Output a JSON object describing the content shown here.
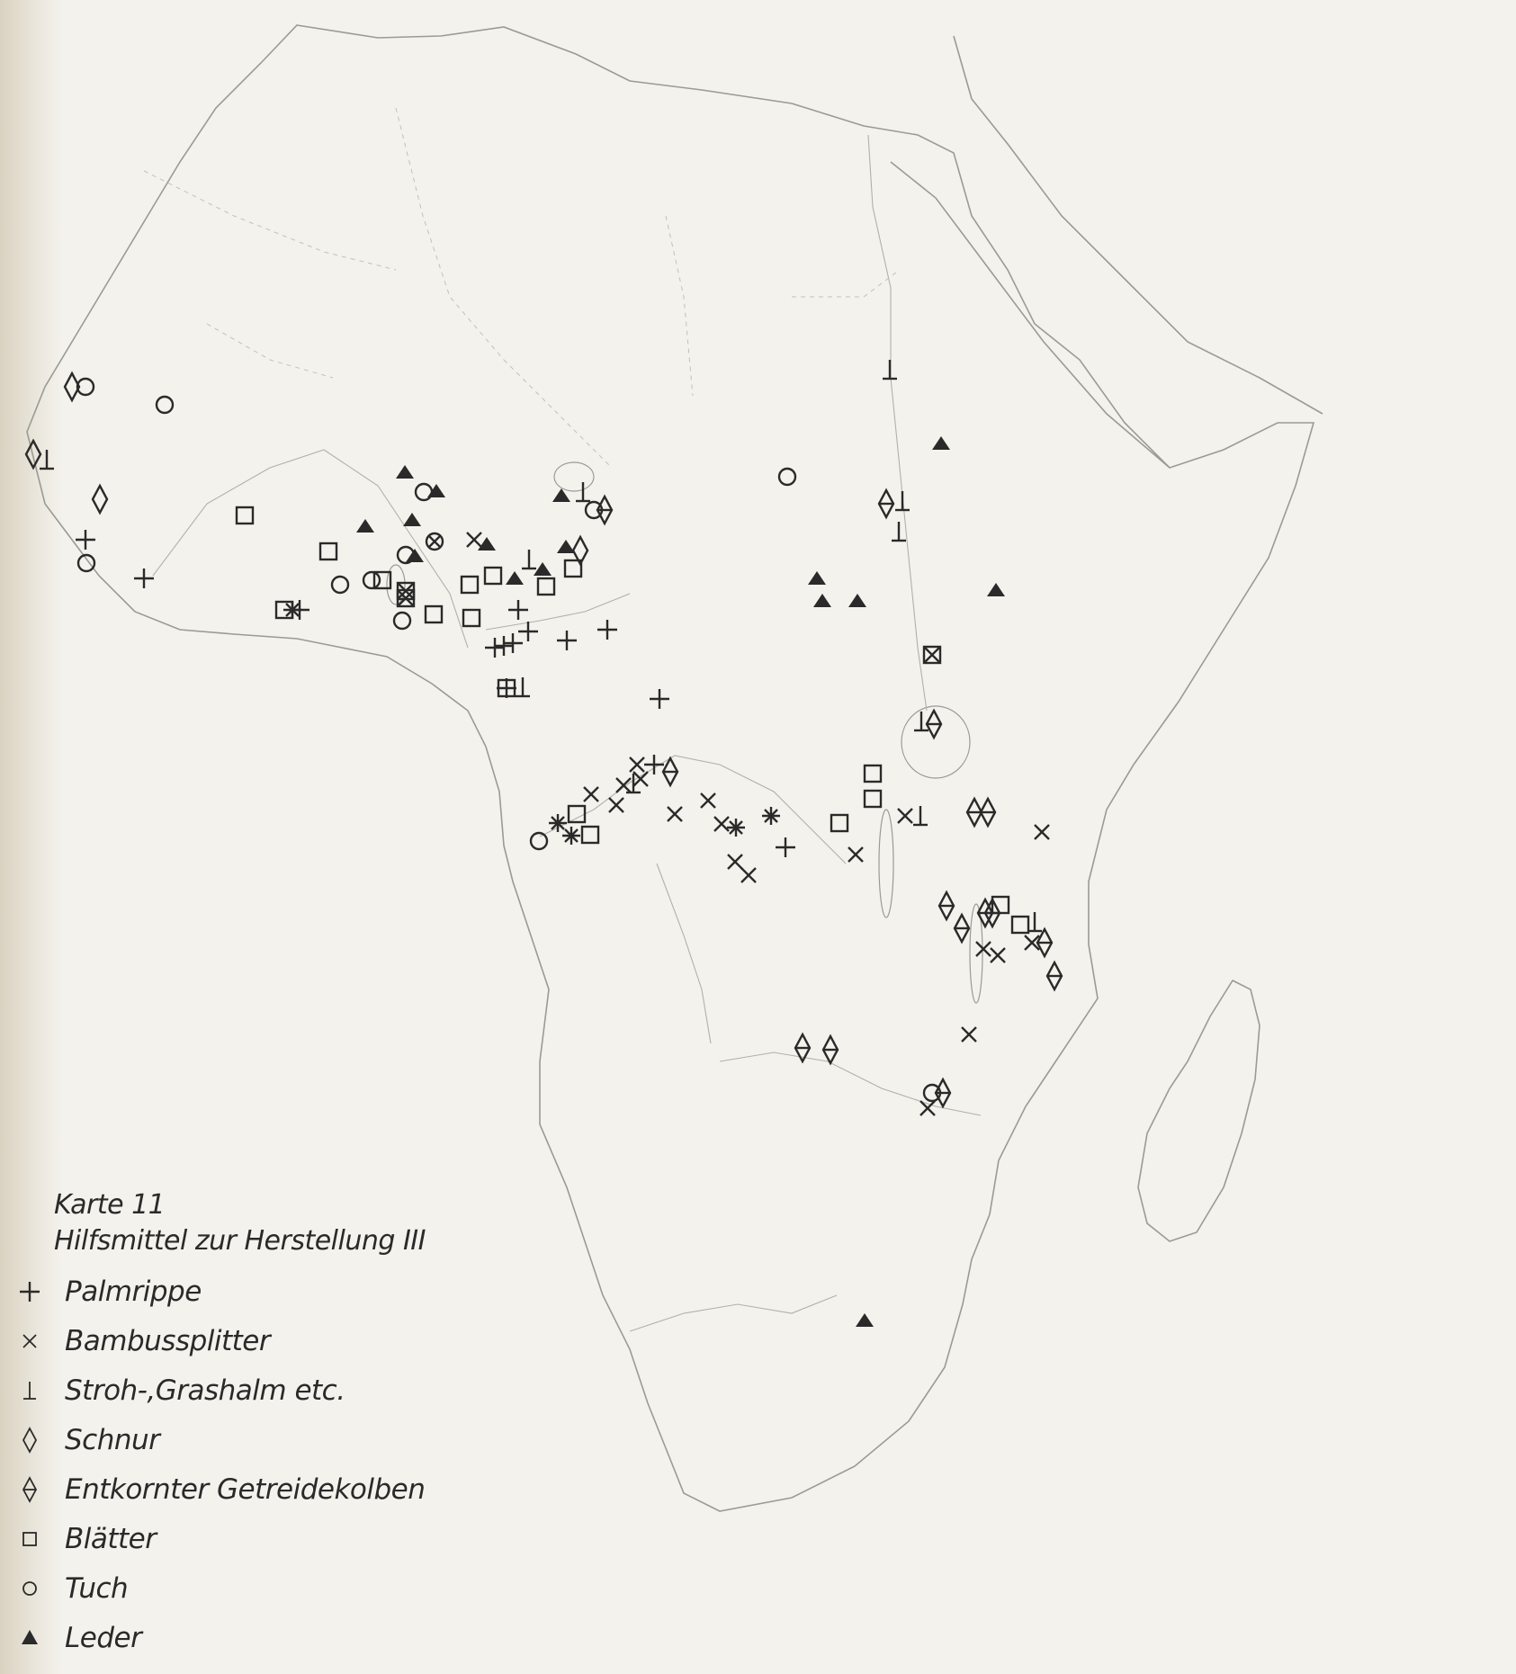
{
  "map": {
    "caption_line1": "Karte 11",
    "caption_line2": "Hilfsmittel zur Herstellung III",
    "legend": [
      {
        "symbol": "plus-icon",
        "label": "Palmrippe"
      },
      {
        "symbol": "cross-icon",
        "label": "Bambussplitter"
      },
      {
        "symbol": "up-tack-icon",
        "label": "Stroh-,Grashalm etc."
      },
      {
        "symbol": "diamond-icon",
        "label": "Schnur"
      },
      {
        "symbol": "diamond-bar-icon",
        "label": "Entkornter Getreidekolben"
      },
      {
        "symbol": "square-icon",
        "label": "Blätter"
      },
      {
        "symbol": "circle-icon",
        "label": "Tuch"
      },
      {
        "symbol": "triangle-icon",
        "label": "Leder"
      }
    ]
  },
  "colors": {
    "ink": "#2a2a2a",
    "coast": "#9a9a96",
    "paper": "#f4f2ec"
  }
}
